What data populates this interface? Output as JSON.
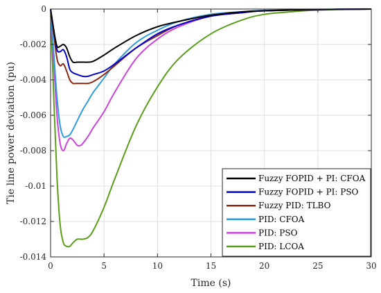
{
  "chart_data": {
    "type": "line",
    "xlabel": "Time (s)",
    "ylabel": "Tie line power deviation  (pu)",
    "xlim": [
      0,
      30
    ],
    "ylim": [
      -0.014,
      0
    ],
    "xticks": [
      0,
      5,
      10,
      15,
      20,
      25,
      30
    ],
    "xtick_labels": [
      "0",
      "5",
      "10",
      "15",
      "20",
      "25",
      "30"
    ],
    "yticks": [
      0,
      -0.002,
      -0.004,
      -0.006,
      -0.008,
      -0.01,
      -0.012,
      -0.014
    ],
    "ytick_labels": [
      "0",
      "-0.002",
      "-0.004",
      "-0.006",
      "-0.008",
      "-0.01",
      "-0.012",
      "-0.014"
    ],
    "grid": true,
    "legend_position": "bottom-right",
    "series": [
      {
        "name": "Fuzzy FOPID + PI: CFOA",
        "color": "#000000",
        "x": [
          0,
          0.3,
          0.6,
          0.9,
          1.2,
          1.5,
          1.8,
          2.1,
          2.5,
          3.0,
          3.5,
          4.0,
          5.0,
          6.0,
          8.0,
          10.0,
          12.0,
          15.0,
          18.0,
          20.0,
          25.0,
          30.0
        ],
        "y": [
          0,
          -0.0012,
          -0.0021,
          -0.0021,
          -0.002,
          -0.0022,
          -0.0027,
          -0.003,
          -0.003,
          -0.003,
          -0.003,
          -0.00295,
          -0.0026,
          -0.0022,
          -0.0015,
          -0.001,
          -0.0007,
          -0.00035,
          -0.00015,
          -0.0001,
          -3e-05,
          0
        ]
      },
      {
        "name": "Fuzzy FOPID + PI: PSO",
        "color": "#0000cc",
        "x": [
          0,
          0.3,
          0.6,
          0.9,
          1.2,
          1.5,
          1.8,
          2.1,
          2.5,
          3.0,
          3.5,
          4.0,
          5.0,
          6.0,
          8.0,
          10.0,
          12.0,
          15.0,
          18.0,
          20.0,
          25.0,
          30.0
        ],
        "y": [
          0,
          -0.0012,
          -0.0023,
          -0.0024,
          -0.0023,
          -0.0027,
          -0.0034,
          -0.0036,
          -0.0037,
          -0.0038,
          -0.0038,
          -0.0037,
          -0.0035,
          -0.0031,
          -0.0022,
          -0.0014,
          -0.0009,
          -0.0004,
          -0.0002,
          -0.0001,
          -3e-05,
          0
        ]
      },
      {
        "name": "Fuzzy PID: TLBO",
        "color": "#8b2a12",
        "x": [
          0,
          0.3,
          0.6,
          0.9,
          1.2,
          1.5,
          1.8,
          2.1,
          2.5,
          3.0,
          3.5,
          4.0,
          5.0,
          6.0,
          8.0,
          10.0,
          12.0,
          15.0,
          18.0,
          20.0,
          25.0,
          30.0
        ],
        "y": [
          0,
          -0.0014,
          -0.0028,
          -0.0032,
          -0.0031,
          -0.0035,
          -0.004,
          -0.0042,
          -0.0042,
          -0.0042,
          -0.0042,
          -0.0041,
          -0.0037,
          -0.0032,
          -0.0022,
          -0.0015,
          -0.0009,
          -0.0004,
          -0.0002,
          -0.0001,
          -3e-05,
          0
        ]
      },
      {
        "name": "PID: CFOA",
        "color": "#2e9de0",
        "x": [
          0,
          0.3,
          0.6,
          0.9,
          1.2,
          1.5,
          1.8,
          2.1,
          2.5,
          3.0,
          3.5,
          4.0,
          5.0,
          6.0,
          8.0,
          10.0,
          12.0,
          15.0,
          18.0,
          20.0,
          25.0,
          30.0
        ],
        "y": [
          0,
          -0.0025,
          -0.005,
          -0.0066,
          -0.0072,
          -0.0072,
          -0.0071,
          -0.0068,
          -0.0063,
          -0.0057,
          -0.0052,
          -0.0047,
          -0.0039,
          -0.0031,
          -0.0019,
          -0.0012,
          -0.0007,
          -0.0003,
          -0.00015,
          -8e-05,
          -2e-05,
          0
        ]
      },
      {
        "name": "PID: PSO",
        "color": "#cc44dd",
        "x": [
          0,
          0.3,
          0.6,
          0.9,
          1.2,
          1.5,
          1.8,
          2.1,
          2.5,
          2.8,
          3.0,
          3.5,
          4.0,
          5.0,
          6.0,
          8.0,
          10.0,
          12.0,
          15.0,
          18.0,
          20.0,
          25.0,
          30.0
        ],
        "y": [
          0,
          -0.003,
          -0.006,
          -0.0076,
          -0.008,
          -0.0076,
          -0.0073,
          -0.0074,
          -0.0077,
          -0.0077,
          -0.0076,
          -0.0072,
          -0.0067,
          -0.0058,
          -0.0047,
          -0.0028,
          -0.0017,
          -0.001,
          -0.0004,
          -0.0002,
          -0.0001,
          -3e-05,
          0
        ]
      },
      {
        "name": "PID: LCOA",
        "color": "#5a9e1a",
        "x": [
          0,
          0.3,
          0.6,
          0.9,
          1.2,
          1.5,
          1.8,
          2.1,
          2.5,
          3.0,
          3.5,
          4.0,
          5.0,
          6.0,
          8.0,
          10.0,
          12.0,
          15.0,
          18.0,
          20.0,
          22.0,
          25.0,
          30.0
        ],
        "y": [
          0,
          -0.005,
          -0.0095,
          -0.0122,
          -0.0132,
          -0.0134,
          -0.0134,
          -0.0132,
          -0.013,
          -0.013,
          -0.0129,
          -0.0125,
          -0.0112,
          -0.0096,
          -0.0066,
          -0.0044,
          -0.0028,
          -0.0014,
          -0.0006,
          -0.0003,
          -0.00018,
          -6e-05,
          0
        ]
      }
    ]
  }
}
